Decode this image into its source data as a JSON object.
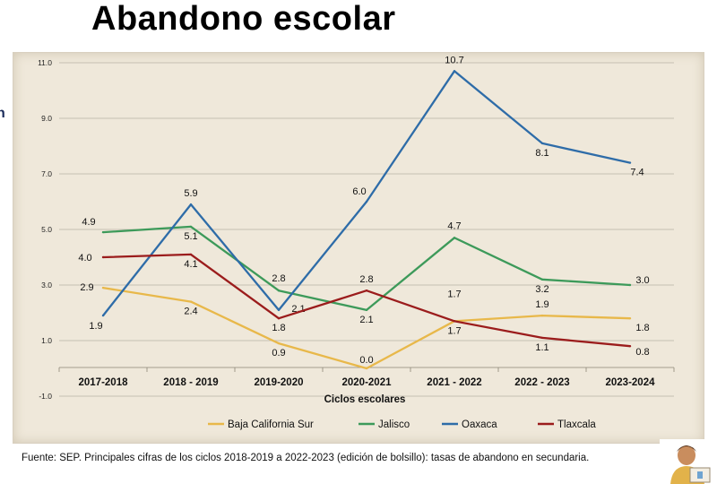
{
  "title": "Abandono escolar",
  "left_mark": "n",
  "source_note": "Fuente: SEP. Principales cifras de los ciclos 2018-2019 a 2022-2023 (edición de bolsillo): tasas de abandono en secundaria.",
  "chart_data": {
    "type": "line",
    "title": "",
    "xlabel": "Ciclos escolares",
    "ylabel": "",
    "categories": [
      "2017-2018",
      "2018 - 2019",
      "2019-2020",
      "2020-2021",
      "2021 - 2022",
      "2022 - 2023",
      "2023-2024"
    ],
    "y_ticks": [
      "-1.0",
      "1.0",
      "3.0",
      "5.0",
      "7.0",
      "9.0",
      "11.0"
    ],
    "ylim": [
      -1.0,
      11.0
    ],
    "grid": true,
    "legend_position": "bottom",
    "series": [
      {
        "name": "Baja California Sur",
        "color": "#e8b84a",
        "values": [
          2.9,
          2.4,
          0.9,
          0.0,
          1.7,
          1.9,
          1.8
        ],
        "labels": [
          "2.9",
          "2.4",
          "0.9",
          "0.0",
          "1.7",
          "1.9",
          "1.8"
        ]
      },
      {
        "name": "Jalisco",
        "color": "#3d9a5a",
        "values": [
          4.9,
          5.1,
          2.8,
          2.1,
          4.7,
          3.2,
          3.0
        ],
        "labels": [
          "4.9",
          "5.1",
          "2.8",
          "2.1",
          "4.7",
          "3.2",
          "3.0"
        ]
      },
      {
        "name": "Oaxaca",
        "color": "#2e6ca8",
        "values": [
          1.9,
          5.9,
          2.1,
          6.0,
          10.7,
          8.1,
          7.4
        ],
        "labels": [
          "1.9",
          "5.9",
          "2.1",
          "6.0",
          "10.7",
          "8.1",
          "7.4"
        ]
      },
      {
        "name": "Tlaxcala",
        "color": "#9b1c1c",
        "values": [
          4.0,
          4.1,
          1.8,
          2.8,
          1.7,
          1.1,
          0.8
        ],
        "labels": [
          "4.0",
          "4.1",
          "1.8",
          "2.8",
          "1.7",
          "1.1",
          "0.8"
        ]
      }
    ]
  }
}
